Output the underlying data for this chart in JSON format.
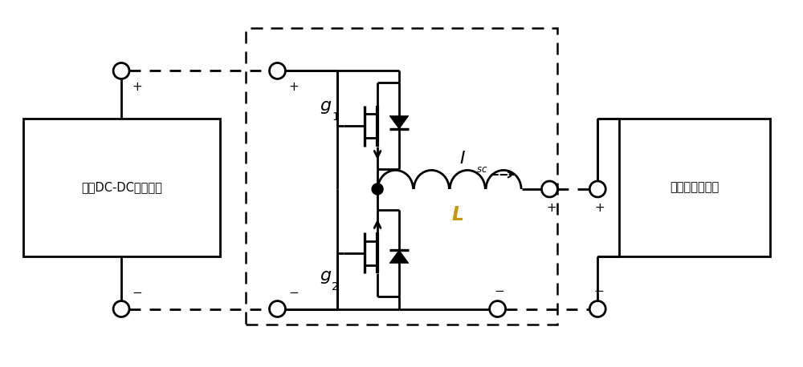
{
  "fig_width": 10.0,
  "fig_height": 4.58,
  "dpi": 100,
  "bg_color": "#ffffff",
  "line_color": "#000000",
  "line_width": 2.0,
  "L_color": "#000000",
  "box1_label": "单向DC-DC升压电路",
  "box2_label": "超级电容器组件",
  "g1_label": "g",
  "g2_label": "g",
  "L_label": "L",
  "Isc_label": "I"
}
